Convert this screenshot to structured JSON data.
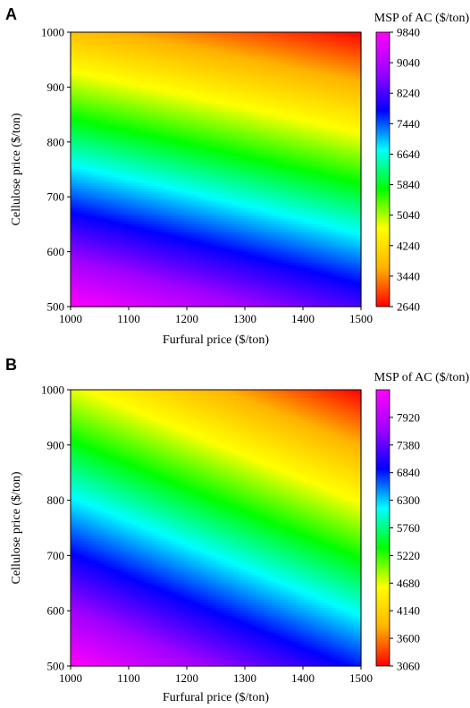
{
  "chart_data": [
    {
      "type": "heatmap",
      "panel_label": "A",
      "xlabel": "Furfural price ($/ton)",
      "ylabel": "Cellulose price ($/ton)",
      "xlim": [
        1000,
        1500
      ],
      "ylim": [
        500,
        1000
      ],
      "x_ticks": [
        1000,
        1100,
        1200,
        1300,
        1400,
        1500
      ],
      "y_ticks": [
        500,
        600,
        700,
        800,
        900,
        1000
      ],
      "colorbar": {
        "title": "MSP of AC ($/ton)",
        "min": 2640,
        "max": 9840,
        "ticks": [
          2640,
          3440,
          4240,
          5040,
          5840,
          6640,
          7440,
          8240,
          9040,
          9840
        ],
        "colormap": "gist_rainbow",
        "colors": [
          "#ff0000",
          "#ffb400",
          "#ffff00",
          "#00ff00",
          "#00ffff",
          "#0000ff",
          "#a000ff",
          "#ff00ff"
        ]
      },
      "corner_values": {
        "x1000_y500": 9840,
        "x1500_y500": 8240,
        "x1000_y1000": 3840,
        "x1500_y1000": 2640
      }
    },
    {
      "type": "heatmap",
      "panel_label": "B",
      "xlabel": "Furfural price ($/ton)",
      "ylabel": "Cellulose price ($/ton)",
      "xlim": [
        1000,
        1500
      ],
      "ylim": [
        500,
        1000
      ],
      "x_ticks": [
        1000,
        1100,
        1200,
        1300,
        1400,
        1500
      ],
      "y_ticks": [
        500,
        600,
        700,
        800,
        900,
        1000
      ],
      "colorbar": {
        "title": "MSP of AC ($/ton)",
        "min": 3060,
        "max": 8460,
        "ticks": [
          3060,
          3600,
          4140,
          4680,
          5220,
          5760,
          6300,
          6840,
          7380,
          7920
        ],
        "colormap": "gist_rainbow",
        "colors": [
          "#ff0000",
          "#ffb400",
          "#ffff00",
          "#00ff00",
          "#00ffff",
          "#0000ff",
          "#a000ff",
          "#ff00ff"
        ]
      },
      "corner_values": {
        "x1000_y500": 8460,
        "x1500_y500": 6840,
        "x1000_y1000": 4680,
        "x1500_y1000": 3060
      }
    }
  ]
}
